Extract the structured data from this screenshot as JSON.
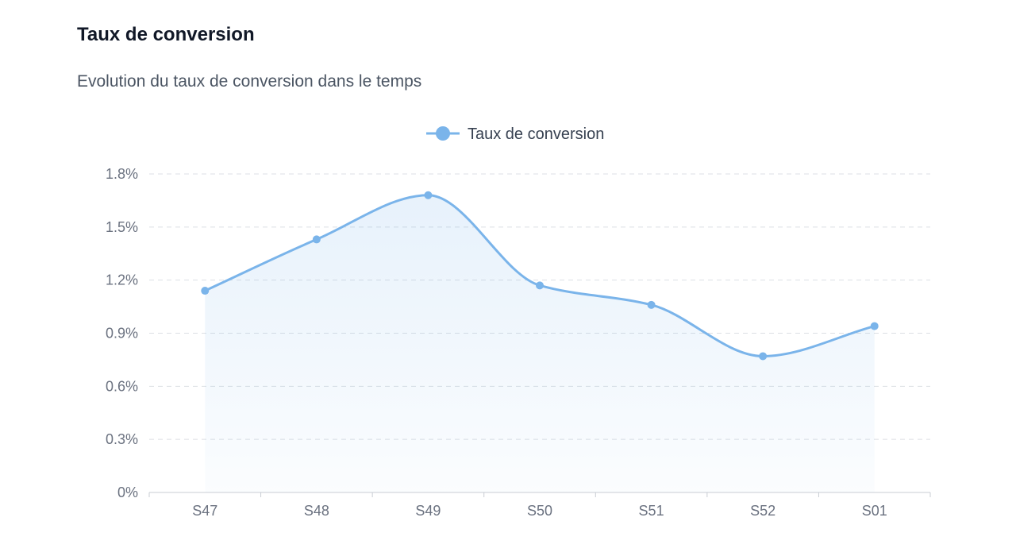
{
  "card": {
    "title": "Taux de conversion",
    "subtitle": "Evolution du taux de conversion dans le temps"
  },
  "chart_data": {
    "type": "line",
    "title": "",
    "xlabel": "",
    "ylabel": "",
    "categories": [
      "S47",
      "S48",
      "S49",
      "S50",
      "S51",
      "S52",
      "S01"
    ],
    "series": [
      {
        "name": "Taux de conversion",
        "values": [
          1.14,
          1.43,
          1.68,
          1.17,
          1.06,
          0.77,
          0.94
        ],
        "color": "#7ab4ea"
      }
    ],
    "ylim": [
      0,
      1.8
    ],
    "yticks": [
      0,
      0.3,
      0.6,
      0.9,
      1.2,
      1.5,
      1.8
    ],
    "ytick_labels": [
      "0%",
      "0.3%",
      "0.6%",
      "0.9%",
      "1.2%",
      "1.5%",
      "1.8%"
    ],
    "smooth": true,
    "area_fill": true,
    "grid": true,
    "legend": "top-center"
  }
}
